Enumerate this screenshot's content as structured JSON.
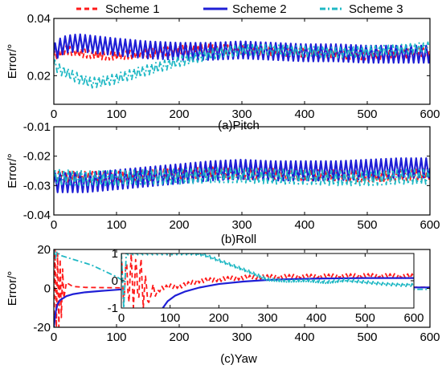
{
  "legend": [
    {
      "name": "Scheme 1",
      "color": "#ff1a1a",
      "dash": "6,4"
    },
    {
      "name": "Scheme 2",
      "color": "#1f1fd6",
      "dash": ""
    },
    {
      "name": "Scheme 3",
      "color": "#1fb8c4",
      "dash": "7,3,2,3"
    }
  ],
  "chart_data": [
    {
      "type": "line",
      "caption": "(a)Pitch",
      "ylabel": "Error/°",
      "xlabel": "",
      "xlim": [
        0,
        600
      ],
      "ylim": [
        0.01,
        0.04
      ],
      "xticks": [
        0,
        100,
        200,
        300,
        400,
        500,
        600
      ],
      "yticks": [
        0.02,
        0.04
      ],
      "ytick_labels": [
        "0.02",
        "0.04"
      ],
      "grid": false,
      "series": [
        {
          "name": "Scheme 1",
          "x": [
            0,
            10,
            20,
            40,
            60,
            80,
            100,
            130,
            160,
            200,
            250,
            300,
            350,
            400,
            450,
            500,
            550,
            600
          ],
          "y": [
            0.027,
            0.028,
            0.029,
            0.028,
            0.0275,
            0.027,
            0.027,
            0.0275,
            0.028,
            0.029,
            0.0295,
            0.029,
            0.0285,
            0.028,
            0.0275,
            0.027,
            0.0275,
            0.0285
          ],
          "osc_amp": 0.0015,
          "osc_period": 6
        },
        {
          "name": "Scheme 2",
          "x": [
            0,
            10,
            20,
            40,
            60,
            80,
            100,
            150,
            200,
            250,
            300,
            350,
            400,
            450,
            500,
            550,
            600
          ],
          "y": [
            0.028,
            0.03,
            0.031,
            0.0315,
            0.031,
            0.0305,
            0.03,
            0.029,
            0.0285,
            0.0285,
            0.029,
            0.0285,
            0.028,
            0.028,
            0.0275,
            0.0275,
            0.0275
          ],
          "osc_amp": 0.003,
          "osc_period": 8
        },
        {
          "name": "Scheme 3",
          "x": [
            0,
            10,
            20,
            40,
            60,
            80,
            100,
            150,
            200,
            250,
            300,
            350,
            400,
            450,
            500,
            550,
            600
          ],
          "y": [
            0.024,
            0.022,
            0.021,
            0.019,
            0.0175,
            0.018,
            0.019,
            0.022,
            0.025,
            0.0275,
            0.029,
            0.029,
            0.0285,
            0.028,
            0.0285,
            0.029,
            0.03
          ],
          "osc_amp": 0.0018,
          "osc_period": 7
        }
      ]
    },
    {
      "type": "line",
      "caption": "(b)Roll",
      "ylabel": "Error/°",
      "xlabel": "",
      "xlim": [
        0,
        600
      ],
      "ylim": [
        -0.04,
        -0.01
      ],
      "xticks": [
        0,
        100,
        200,
        300,
        400,
        500,
        600
      ],
      "yticks": [
        -0.04,
        -0.03,
        -0.02,
        -0.01
      ],
      "ytick_labels": [
        "-0.04",
        "-0.03",
        "-0.02",
        "-0.01"
      ],
      "grid": false,
      "series": [
        {
          "name": "Scheme 1",
          "x": [
            0,
            50,
            100,
            150,
            200,
            250,
            300,
            350,
            400,
            450,
            500,
            550,
            600
          ],
          "y": [
            -0.027,
            -0.027,
            -0.027,
            -0.0265,
            -0.026,
            -0.0255,
            -0.026,
            -0.026,
            -0.0265,
            -0.0265,
            -0.027,
            -0.0265,
            -0.026
          ],
          "osc_amp": 0.0018,
          "osc_period": 6
        },
        {
          "name": "Scheme 2",
          "x": [
            0,
            50,
            100,
            150,
            200,
            250,
            300,
            350,
            400,
            450,
            500,
            550,
            600
          ],
          "y": [
            -0.029,
            -0.029,
            -0.028,
            -0.027,
            -0.026,
            -0.025,
            -0.0245,
            -0.025,
            -0.025,
            -0.025,
            -0.0245,
            -0.024,
            -0.024
          ],
          "osc_amp": 0.0033,
          "osc_period": 8
        },
        {
          "name": "Scheme 3",
          "x": [
            0,
            50,
            100,
            150,
            200,
            250,
            300,
            350,
            400,
            450,
            500,
            550,
            600
          ],
          "y": [
            -0.027,
            -0.0275,
            -0.0275,
            -0.027,
            -0.027,
            -0.0265,
            -0.0265,
            -0.027,
            -0.027,
            -0.0275,
            -0.0275,
            -0.027,
            -0.027
          ],
          "osc_amp": 0.0025,
          "osc_period": 7
        }
      ]
    },
    {
      "type": "line",
      "caption": "(c)Yaw",
      "ylabel": "Error/°",
      "xlabel": "",
      "xlim": [
        0,
        600
      ],
      "ylim": [
        -20,
        20
      ],
      "xticks": [
        0,
        100,
        200,
        300,
        400,
        500,
        600
      ],
      "yticks": [
        -20,
        0,
        20
      ],
      "ytick_labels": [
        "-20",
        "0",
        "20"
      ],
      "grid": false,
      "series": [
        {
          "name": "Scheme 1",
          "x": [
            0,
            2,
            4,
            6,
            8,
            10,
            12,
            14,
            16,
            20,
            30,
            50,
            100,
            600
          ],
          "y": [
            -18,
            20,
            -20,
            18,
            -20,
            15,
            -15,
            10,
            -5,
            3,
            1,
            0.5,
            0.3,
            0.6
          ]
        },
        {
          "name": "Scheme 2",
          "x": [
            0,
            3,
            6,
            10,
            15,
            20,
            30,
            50,
            80,
            110,
            150,
            200,
            300,
            400,
            500,
            600
          ],
          "y": [
            -20,
            -12,
            -8,
            -6,
            -5,
            -4,
            -3,
            -2,
            -1.2,
            -0.5,
            0,
            0.3,
            0.5,
            0.5,
            0.5,
            0.5
          ]
        },
        {
          "name": "Scheme 3",
          "x": [
            0,
            3,
            5,
            10,
            20,
            40,
            60,
            80,
            100,
            110,
            120,
            150,
            200,
            250,
            300,
            350,
            400,
            500,
            600
          ],
          "y": [
            20,
            15,
            19,
            17,
            16,
            14,
            12,
            9,
            6,
            4,
            3,
            2,
            0.5,
            0,
            0,
            -0.3,
            0,
            -0.5,
            -0.5
          ]
        }
      ],
      "inset": {
        "xlim": [
          0,
          600
        ],
        "ylim": [
          -1,
          1
        ],
        "xticks": [
          0,
          100,
          200,
          300,
          400,
          500,
          600
        ],
        "yticks": [
          -1,
          0,
          1
        ],
        "ytick_labels": [
          "-1",
          "0",
          "1"
        ],
        "series": [
          {
            "name": "Scheme 1",
            "x": [
              0,
              5,
              10,
              15,
              20,
              25,
              30,
              35,
              40,
              45,
              50,
              55,
              60,
              65,
              70,
              80,
              100,
              120,
              160,
              200,
              250,
              300,
              400,
              500,
              600
            ],
            "y": [
              1,
              -1,
              1,
              -1,
              1,
              -1,
              1,
              -1,
              1,
              -1,
              0.3,
              -1,
              -0.5,
              -0.2,
              -0.5,
              -0.3,
              -0.2,
              -0.2,
              0,
              0.05,
              0.12,
              0.14,
              0.16,
              0.18,
              0.17
            ],
            "osc_amp": 0.08,
            "osc_period": 9
          },
          {
            "name": "Scheme 2",
            "x": [
              85,
              95,
              110,
              130,
              160,
              200,
              250,
              300,
              350,
              400,
              450,
              500,
              550,
              600
            ],
            "y": [
              -1,
              -0.75,
              -0.55,
              -0.4,
              -0.25,
              -0.12,
              -0.03,
              0.03,
              0.06,
              0.08,
              0.09,
              0.1,
              0.1,
              0.1
            ]
          },
          {
            "name": "Scheme 3",
            "x": [
              0,
              5,
              10,
              15,
              150,
              170,
              200,
              230,
              260,
              280,
              300,
              340,
              380,
              420,
              460,
              500,
              540,
              580,
              600
            ],
            "y": [
              1,
              -1,
              1,
              1,
              1,
              0.95,
              0.75,
              0.55,
              0.35,
              0.2,
              0.05,
              0,
              0.02,
              -0.05,
              0.02,
              -0.05,
              -0.12,
              -0.16,
              -0.15
            ],
            "osc_amp": 0.05,
            "osc_period": 5
          }
        ]
      }
    }
  ]
}
